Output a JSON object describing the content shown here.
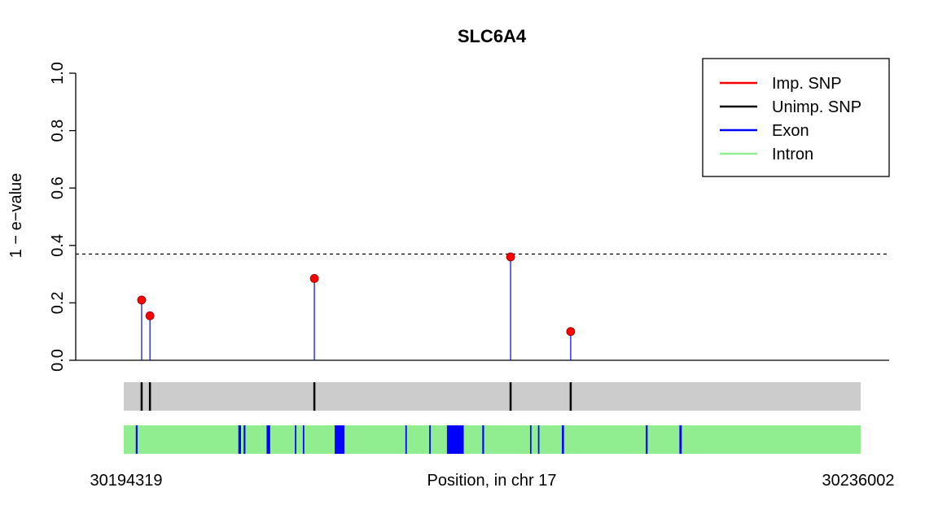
{
  "chart_data": {
    "type": "scatter",
    "title": "SLC6A4",
    "xlabel": "Position, in chr 17",
    "ylabel": "1 − e−value",
    "x_range": [
      30194319,
      30236002
    ],
    "x_tick_labels": [
      "30194319",
      "30236002"
    ],
    "ylim": [
      0,
      1
    ],
    "y_ticks": [
      0.0,
      0.2,
      0.4,
      0.6,
      0.8,
      1.0
    ],
    "y_tick_labels": [
      "0.0",
      "0.2",
      "0.4",
      "0.6",
      "0.8",
      "1.0"
    ],
    "threshold": 0.37,
    "grid": false,
    "legend_position": "top-right",
    "legend": [
      {
        "label": "Imp. SNP",
        "color": "#ff0000"
      },
      {
        "label": "Unimp. SNP",
        "color": "#000000"
      },
      {
        "label": "Exon",
        "color": "#0000ff"
      },
      {
        "label": "Intron",
        "color": "#90ee90"
      }
    ],
    "series": [
      {
        "name": "Imp. SNP",
        "color": "#ff0000",
        "points": [
          {
            "x": 30195330,
            "y": 0.21
          },
          {
            "x": 30195800,
            "y": 0.155
          },
          {
            "x": 30205100,
            "y": 0.285
          },
          {
            "x": 30216200,
            "y": 0.36
          },
          {
            "x": 30219600,
            "y": 0.1
          }
        ]
      }
    ],
    "unimputed_snp_track": {
      "color": "#000000",
      "background": "#cccccc",
      "positions": [
        30195330,
        30195800,
        30205100,
        30216200,
        30219600
      ]
    },
    "gene_structure_track": {
      "intron_color": "#90ee90",
      "exon_color": "#0000ff",
      "exons": [
        [
          30195000,
          30195100
        ],
        [
          30200800,
          30200950
        ],
        [
          30201100,
          30201200
        ],
        [
          30202400,
          30202600
        ],
        [
          30204000,
          30204080
        ],
        [
          30204450,
          30204530
        ],
        [
          30206250,
          30206800
        ],
        [
          30210250,
          30210330
        ],
        [
          30211600,
          30211680
        ],
        [
          30212600,
          30213550
        ],
        [
          30214600,
          30214700
        ],
        [
          30217300,
          30217380
        ],
        [
          30217750,
          30217830
        ],
        [
          30219100,
          30219220
        ],
        [
          30223850,
          30223950
        ],
        [
          30225750,
          30225880
        ]
      ]
    }
  }
}
